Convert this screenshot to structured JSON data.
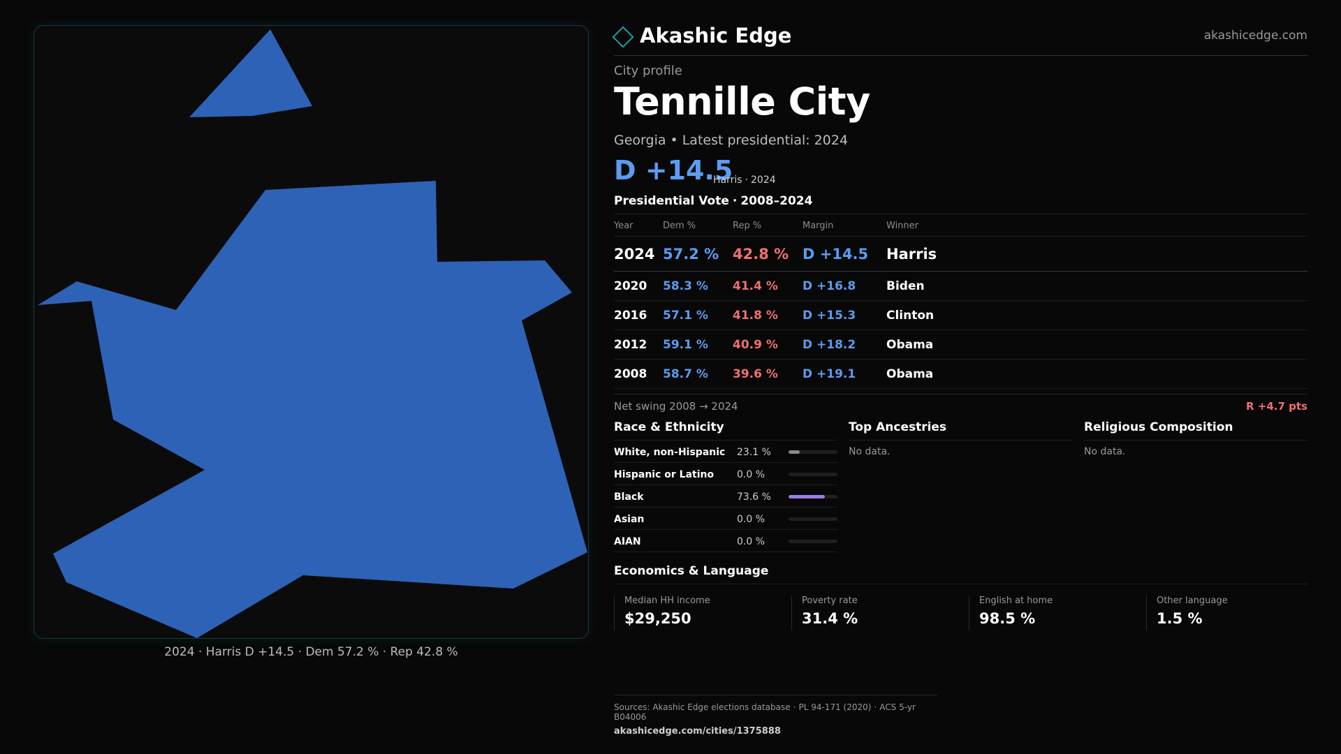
{
  "map": {
    "fill_color": "#2e62b6",
    "caption": {
      "year": "2024",
      "winner_margin": "Harris D +14.5",
      "dem": "Dem 57.2 %",
      "rep": "Rep 42.8 %",
      "sep": "·"
    }
  },
  "brand": {
    "name": "Akashic Edge",
    "url": "akashicedge.com",
    "icon": "diamond-icon"
  },
  "profile": {
    "kicker": "City profile",
    "city": "Tennille City",
    "state": "Georgia",
    "latest_label": "Latest presidential: 2024",
    "headline_margin": "D +14.5",
    "headline_candidate": "Harris",
    "headline_year": "2024"
  },
  "vote_section": {
    "title": "Presidential Vote",
    "range": "2008–2024",
    "headers": {
      "year": "Year",
      "dem": "Dem %",
      "rep": "Rep %",
      "margin": "Margin",
      "winner": "Winner"
    },
    "rows": [
      {
        "year": "2024",
        "dem": "57.2 %",
        "rep": "42.8 %",
        "margin": "D +14.5",
        "winner": "Harris"
      },
      {
        "year": "2020",
        "dem": "58.3 %",
        "rep": "41.4 %",
        "margin": "D +16.8",
        "winner": "Biden"
      },
      {
        "year": "2016",
        "dem": "57.1 %",
        "rep": "41.8 %",
        "margin": "D +15.3",
        "winner": "Clinton"
      },
      {
        "year": "2012",
        "dem": "59.1 %",
        "rep": "40.9 %",
        "margin": "D +18.2",
        "winner": "Obama"
      },
      {
        "year": "2008",
        "dem": "58.7 %",
        "rep": "39.6 %",
        "margin": "D +19.1",
        "winner": "Obama"
      }
    ],
    "swing_label": "Net swing 2008 → 2024",
    "swing_value": "R +4.7 pts"
  },
  "race": {
    "title": "Race & Ethnicity",
    "rows": [
      {
        "label": "White, non-Hispanic",
        "pct": "23.1 %",
        "value": 23.1,
        "color": "#8a8a8a"
      },
      {
        "label": "Hispanic or Latino",
        "pct": "0.0 %",
        "value": 0.0,
        "color": "#8a8a8a"
      },
      {
        "label": "Black",
        "pct": "73.6 %",
        "value": 73.6,
        "color": "#9b7ee0"
      },
      {
        "label": "Asian",
        "pct": "0.0 %",
        "value": 0.0,
        "color": "#8a8a8a"
      },
      {
        "label": "AIAN",
        "pct": "0.0 %",
        "value": 0.0,
        "color": "#8a8a8a"
      }
    ]
  },
  "ancestries": {
    "title": "Top Ancestries",
    "empty": "No data."
  },
  "religion": {
    "title": "Religious Composition",
    "empty": "No data."
  },
  "economics": {
    "title": "Economics & Language",
    "cells": [
      {
        "label": "Median HH income",
        "value": "$29,250"
      },
      {
        "label": "Poverty rate",
        "value": "31.4 %"
      },
      {
        "label": "English at home",
        "value": "98.5 %"
      },
      {
        "label": "Other language",
        "value": "1.5 %"
      }
    ]
  },
  "footer": {
    "src1": "Sources: Akashic Edge elections database",
    "src2": "PL 94-171 (2020)",
    "src3": "ACS 5-yr B04006",
    "link": "akashicedge.com/cities/1375888"
  }
}
